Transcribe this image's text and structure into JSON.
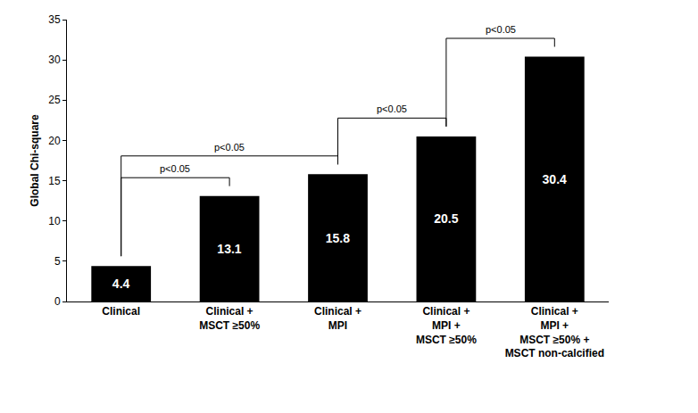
{
  "chart_data": {
    "type": "bar",
    "y_label": "Global Chi-square",
    "categories": [
      "Clinical",
      "Clinical + MSCT ≥50%",
      "Clinical + MPI",
      "Clinical + MPI + MSCT ≥50%",
      "Clinical + MPI + MSCT ≥50% + MSCT non-calcified"
    ],
    "values": [
      4.4,
      13.1,
      15.8,
      20.5,
      30.4
    ],
    "color": "#000000",
    "data_labels": true,
    "ylim": [
      0,
      35
    ],
    "yticks": [
      0,
      5,
      10,
      15,
      20,
      25,
      30,
      35
    ],
    "grid": false,
    "annotations": [
      {
        "text": "p<0.05",
        "between": [
          "Clinical",
          "Clinical + MSCT ≥50%"
        ]
      },
      {
        "text": "p<0.05",
        "between": [
          "Clinical",
          "Clinical + MPI"
        ]
      },
      {
        "text": "p<0.05",
        "between": [
          "Clinical + MPI",
          "Clinical + MPI + MSCT ≥50%"
        ]
      },
      {
        "text": "p<0.05",
        "between": [
          "Clinical + MPI + MSCT ≥50%",
          "Clinical + MPI + MSCT ≥50% + MSCT non-calcified"
        ]
      }
    ]
  }
}
